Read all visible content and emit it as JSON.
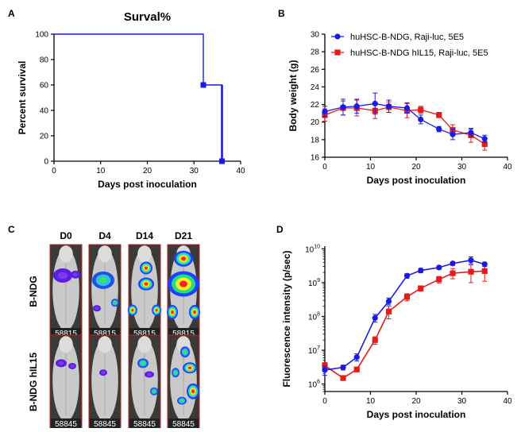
{
  "panels": {
    "A": "A",
    "B": "B",
    "C": "C",
    "D": "D"
  },
  "chart_data": [
    {
      "id": "A",
      "type": "line",
      "style": "step",
      "title": "Surval%",
      "xlabel": "Days post inoculation",
      "ylabel": "Percent survival",
      "xlim": [
        0,
        40
      ],
      "ylim": [
        0,
        100
      ],
      "xticks": [
        0,
        10,
        20,
        30,
        40
      ],
      "yticks": [
        0,
        20,
        40,
        60,
        80,
        100
      ],
      "color": "#1a1ae6",
      "series": [
        {
          "x": [
            0,
            32,
            32,
            36,
            36
          ],
          "y": [
            100,
            100,
            60,
            60,
            0
          ],
          "censor_markers": [
            [
              32,
              60
            ],
            [
              36,
              0
            ]
          ]
        }
      ]
    },
    {
      "id": "B",
      "type": "line",
      "xlabel": "Days post inoculation",
      "ylabel": "Body weight (g)",
      "xlim": [
        0,
        40
      ],
      "ylim": [
        16,
        30
      ],
      "xticks": [
        0,
        10,
        20,
        30,
        40
      ],
      "yticks": [
        16,
        18,
        20,
        22,
        24,
        26,
        28,
        30
      ],
      "legend_position": "top-right",
      "series": [
        {
          "name": "huHSC-B-NDG, Raji-luc, 5E5",
          "color": "#1a1ae6",
          "marker": "circle",
          "x": [
            0,
            4,
            7,
            11,
            14,
            18,
            21,
            25,
            28,
            32,
            35
          ],
          "y": [
            21.2,
            21.7,
            21.8,
            22.1,
            21.8,
            21.6,
            20.3,
            19.2,
            18.6,
            18.8,
            18.1
          ],
          "err": [
            0.6,
            0.9,
            0.8,
            1.2,
            0.7,
            0.6,
            0.5,
            0.3,
            0.6,
            0.4,
            0.4
          ]
        },
        {
          "name": "huHSC-B-NDG hIL15, Raji-luc, 5E5",
          "color": "#e61a1a",
          "marker": "square",
          "x": [
            0,
            4,
            7,
            11,
            14,
            18,
            21,
            25,
            28,
            32,
            35
          ],
          "y": [
            20.8,
            21.6,
            21.6,
            21.3,
            21.7,
            21.3,
            21.4,
            20.8,
            19.1,
            18.5,
            17.5
          ],
          "err": [
            0.7,
            0.8,
            0.9,
            0.9,
            0.6,
            0.8,
            0.4,
            0.3,
            0.6,
            0.8,
            0.7
          ]
        }
      ]
    },
    {
      "id": "D",
      "type": "line",
      "xlabel": "Days post inoculation",
      "ylabel": "Fluorescence intensity (p/sec)",
      "yscale": "log",
      "xlim": [
        0,
        40
      ],
      "ylim": [
        600000,
        12000000000
      ],
      "xticks": [
        0,
        10,
        20,
        30,
        40
      ],
      "yticks": [
        1000000,
        10000000,
        100000000,
        1000000000,
        10000000000
      ],
      "ytick_labels": [
        {
          "base": "10",
          "exp": "6"
        },
        {
          "base": "10",
          "exp": "7"
        },
        {
          "base": "10",
          "exp": "8"
        },
        {
          "base": "10",
          "exp": "9"
        },
        {
          "base": "10",
          "exp": "10"
        }
      ],
      "series": [
        {
          "name": "huHSC-B-NDG, Raji-luc, 5E5",
          "color": "#1a1ae6",
          "marker": "circle",
          "x": [
            0,
            4,
            7,
            11,
            14,
            18,
            21,
            25,
            28,
            32,
            35
          ],
          "y": [
            2600000,
            3100000,
            6200000,
            90000000,
            280000000,
            1600000000,
            2300000000,
            2800000000,
            3700000000,
            4600000000,
            3500000000
          ],
          "err_low": [
            1800000,
            2600000,
            4800000,
            68000000,
            220000000,
            1350000000,
            1950000000,
            2450000000,
            3250000000,
            3600000000,
            3000000000
          ],
          "err_high": [
            3400000,
            3600000,
            7800000,
            115000000,
            350000000,
            1850000000,
            2650000000,
            3150000000,
            4150000000,
            5800000000,
            4000000000
          ]
        },
        {
          "name": "huHSC-B-NDG hIL15, Raji-luc, 5E5",
          "color": "#e61a1a",
          "marker": "square",
          "x": [
            0,
            4,
            7,
            11,
            14,
            18,
            21,
            25,
            28,
            32,
            35
          ],
          "y": [
            3500000,
            1500000,
            2700000,
            20000000,
            140000000,
            380000000,
            680000000,
            1250000000,
            1900000000,
            2100000000,
            2200000000
          ],
          "err_low": [
            2700000,
            1300000,
            2300000,
            15000000,
            85000000,
            290000000,
            560000000,
            980000000,
            1300000000,
            1000000000,
            1100000000
          ],
          "err_high": [
            4300000,
            1700000,
            3100000,
            25000000,
            200000000,
            470000000,
            800000000,
            1520000000,
            2600000000,
            3300000000,
            3400000000
          ]
        }
      ]
    }
  ],
  "imaging": {
    "days": [
      "D0",
      "D4",
      "D14",
      "D21"
    ],
    "rows": [
      {
        "label": "B-NDG",
        "id_text": "58815"
      },
      {
        "label": "B-NDG hIL15",
        "id_text": "58845"
      }
    ]
  }
}
